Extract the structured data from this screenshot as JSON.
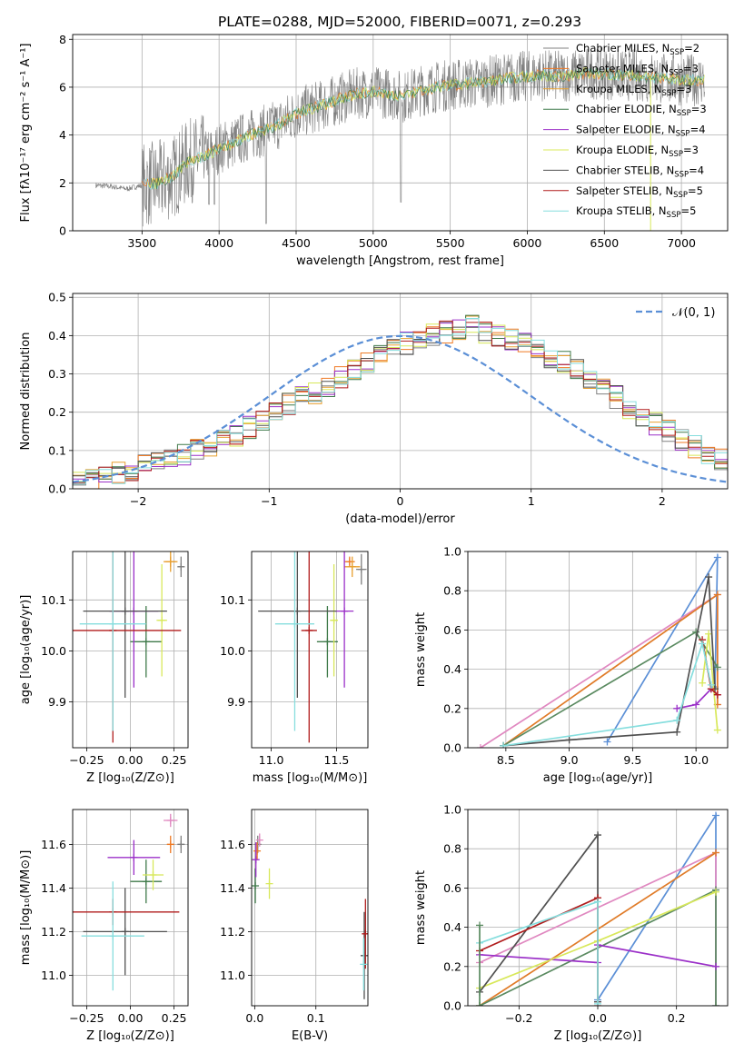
{
  "figure": {
    "title": "PLATE=0288, MJD=52000, FIBERID=0071, z=0.293"
  },
  "colors": {
    "chabrier_miles": "#808080",
    "salpeter_miles": "#ef7a24",
    "kroupa_miles": "#e8a030",
    "chabrier_elodie": "#3f7a4a",
    "salpeter_elodie": "#9b30c8",
    "kroupa_elodie": "#d8e85a",
    "chabrier_stelib": "#505050",
    "salpeter_stelib": "#b01c1c",
    "kroupa_stelib": "#86dede",
    "data_grey": "#7f7f7f",
    "gauss": "#5b8fd6",
    "pink": "#e088c0",
    "blue": "#5b8fd6",
    "orange": "#e07b28",
    "green": "#5a8a60"
  },
  "chart_data": [
    {
      "id": "spectrum",
      "type": "line",
      "title": "PLATE=0288, MJD=52000, FIBERID=0071, z=0.293",
      "xlabel": "wavelength [Angstrom, rest frame]",
      "ylabel": "Flux [fλ10⁻¹⁷ erg cm⁻² s⁻¹ A⁻¹]",
      "xlim": [
        3050,
        7300
      ],
      "ylim": [
        0,
        8.2
      ],
      "xticks": [
        "3500",
        "4000",
        "4500",
        "5000",
        "5500",
        "6000",
        "6500",
        "7000"
      ],
      "yticks": [
        "0",
        "2",
        "4",
        "6",
        "8"
      ],
      "legend_position": "top-right",
      "legend": [
        {
          "name": "Chabrier MILES, N",
          "sub": "SSP",
          "suffix": "=2",
          "color_key": "chabrier_miles"
        },
        {
          "name": "Salpeter MILES, N",
          "sub": "SSP",
          "suffix": "=3",
          "color_key": "salpeter_miles"
        },
        {
          "name": "Kroupa MILES, N",
          "sub": "SSP",
          "suffix": "=3",
          "color_key": "kroupa_miles"
        },
        {
          "name": "Chabrier ELODIE, N",
          "sub": "SSP",
          "suffix": "=3",
          "color_key": "chabrier_elodie"
        },
        {
          "name": "Salpeter ELODIE, N",
          "sub": "SSP",
          "suffix": "=4",
          "color_key": "salpeter_elodie"
        },
        {
          "name": "Kroupa ELODIE, N",
          "sub": "SSP",
          "suffix": "=3",
          "color_key": "kroupa_elodie"
        },
        {
          "name": "Chabrier STELIB, N",
          "sub": "SSP",
          "suffix": "=4",
          "color_key": "chabrier_stelib"
        },
        {
          "name": "Salpeter STELIB, N",
          "sub": "SSP",
          "suffix": "=5",
          "color_key": "salpeter_stelib"
        },
        {
          "name": "Kroupa STELIB, N",
          "sub": "SSP",
          "suffix": "=5",
          "color_key": "kroupa_stelib"
        }
      ],
      "continuum": [
        [
          3200,
          1.9
        ],
        [
          3300,
          1.85
        ],
        [
          3400,
          1.75
        ],
        [
          3500,
          1.9
        ],
        [
          3600,
          2.0
        ],
        [
          3700,
          2.25
        ],
        [
          3800,
          2.9
        ],
        [
          3900,
          3.1
        ],
        [
          4000,
          3.45
        ],
        [
          4100,
          3.7
        ],
        [
          4200,
          4.0
        ],
        [
          4300,
          4.2
        ],
        [
          4400,
          4.5
        ],
        [
          4500,
          4.9
        ],
        [
          4600,
          5.1
        ],
        [
          4700,
          5.3
        ],
        [
          4800,
          5.55
        ],
        [
          4900,
          5.75
        ],
        [
          5000,
          5.8
        ],
        [
          5100,
          5.75
        ],
        [
          5200,
          5.6
        ],
        [
          5300,
          5.85
        ],
        [
          5400,
          6.0
        ],
        [
          5500,
          6.1
        ],
        [
          5600,
          6.15
        ],
        [
          5700,
          6.2
        ],
        [
          5800,
          6.3
        ],
        [
          5900,
          6.4
        ],
        [
          6000,
          6.45
        ],
        [
          6100,
          6.5
        ],
        [
          6200,
          6.45
        ],
        [
          6300,
          6.5
        ],
        [
          6400,
          6.6
        ],
        [
          6500,
          6.55
        ],
        [
          6600,
          6.5
        ],
        [
          6700,
          6.5
        ],
        [
          6800,
          6.4
        ],
        [
          6900,
          6.35
        ],
        [
          7000,
          6.3
        ],
        [
          7100,
          6.3
        ],
        [
          7150,
          6.3
        ]
      ]
    },
    {
      "id": "residuals",
      "type": "histogram",
      "xlabel": "(data-model)/error",
      "ylabel": "Normed distribution",
      "xlim": [
        -2.5,
        2.5
      ],
      "ylim": [
        0,
        0.51
      ],
      "xticks": [
        "−2",
        "−1",
        "0",
        "1",
        "2"
      ],
      "yticks": [
        "0.0",
        "0.1",
        "0.2",
        "0.3",
        "0.4",
        "0.5"
      ],
      "legend_position": "top-right",
      "legend": [
        {
          "name": "𝒩(0, 1)",
          "color_key": "gauss",
          "style": "dashed"
        }
      ],
      "bin_width": 0.1,
      "bin_start": -2.5,
      "series_envelope": [
        0.02,
        0.02,
        0.03,
        0.04,
        0.05,
        0.06,
        0.07,
        0.08,
        0.09,
        0.1,
        0.11,
        0.13,
        0.14,
        0.16,
        0.18,
        0.2,
        0.22,
        0.24,
        0.25,
        0.27,
        0.29,
        0.31,
        0.33,
        0.35,
        0.37,
        0.38,
        0.39,
        0.4,
        0.41,
        0.42,
        0.43,
        0.41,
        0.4,
        0.39,
        0.38,
        0.36,
        0.34,
        0.33,
        0.31,
        0.28,
        0.26,
        0.24,
        0.21,
        0.19,
        0.17,
        0.15,
        0.13,
        0.11,
        0.09,
        0.08,
        0.07
      ]
    },
    {
      "id": "age_vs_Z",
      "type": "scatter",
      "xlabel": "Z [log₁₀(Z/Z⊙)]",
      "ylabel": "age  [log₁₀(age/yr)]",
      "xlim": [
        -0.33,
        0.33
      ],
      "ylim": [
        9.81,
        10.195
      ],
      "xticks": [
        "−0.25",
        "0.00",
        "0.25"
      ],
      "yticks": [
        "9.9",
        "10.0",
        "10.1"
      ],
      "points": [
        {
          "color_key": "chabrier_miles",
          "x": 0.29,
          "y": 10.165,
          "xerr": 0.02,
          "yerr": 0.02
        },
        {
          "color_key": "salpeter_miles",
          "x": 0.23,
          "y": 10.175,
          "xerr": 0.03,
          "yerr": 0.01
        },
        {
          "color_key": "kroupa_miles",
          "x": 0.23,
          "y": 10.175,
          "xerr": 0.04,
          "yerr": 0.02
        },
        {
          "color_key": "chabrier_elodie",
          "x": 0.09,
          "y": 10.018,
          "xerr": 0.09,
          "yerr": 0.07
        },
        {
          "color_key": "salpeter_elodie",
          "x": 0.02,
          "y": 10.078,
          "xerr": 0.14,
          "yerr": 0.15
        },
        {
          "color_key": "kroupa_elodie",
          "x": 0.18,
          "y": 10.06,
          "xerr": 0.03,
          "yerr": 0.11
        },
        {
          "color_key": "chabrier_stelib",
          "x": -0.03,
          "y": 10.078,
          "xerr": 0.24,
          "yerr": 0.17
        },
        {
          "color_key": "salpeter_stelib",
          "x": -0.1,
          "y": 10.04,
          "xerr": 0.39,
          "yerr": 0.22
        },
        {
          "color_key": "kroupa_stelib",
          "x": -0.1,
          "y": 10.053,
          "xerr": 0.19,
          "yerr": 0.21
        }
      ]
    },
    {
      "id": "age_vs_mass",
      "type": "scatter",
      "xlabel": "mass [log₁₀(M/M⊙)]",
      "xlim": [
        10.85,
        11.74
      ],
      "ylim": [
        9.81,
        10.195
      ],
      "xticks": [
        "11.0",
        "11.5"
      ],
      "yticks": [
        "9.9",
        "10.0",
        "10.1"
      ],
      "points": [
        {
          "color_key": "chabrier_miles",
          "x": 11.69,
          "y": 10.16,
          "xerr": 0.04,
          "yerr": 0.03
        },
        {
          "color_key": "salpeter_miles",
          "x": 11.6,
          "y": 10.175,
          "xerr": 0.04,
          "yerr": 0.01
        },
        {
          "color_key": "kroupa_miles",
          "x": 11.62,
          "y": 10.165,
          "xerr": 0.06,
          "yerr": 0.02
        },
        {
          "color_key": "chabrier_elodie",
          "x": 11.43,
          "y": 10.018,
          "xerr": 0.08,
          "yerr": 0.07
        },
        {
          "color_key": "salpeter_elodie",
          "x": 11.56,
          "y": 10.078,
          "xerr": 0.07,
          "yerr": 0.15
        },
        {
          "color_key": "kroupa_elodie",
          "x": 11.48,
          "y": 10.06,
          "xerr": 0.03,
          "yerr": 0.11
        },
        {
          "color_key": "chabrier_stelib",
          "x": 11.2,
          "y": 10.078,
          "xerr": 0.3,
          "yerr": 0.17
        },
        {
          "color_key": "salpeter_stelib",
          "x": 11.29,
          "y": 10.04,
          "xerr": 0.06,
          "yerr": 0.22
        },
        {
          "color_key": "kroupa_stelib",
          "x": 11.18,
          "y": 10.053,
          "xerr": 0.15,
          "yerr": 0.21
        }
      ]
    },
    {
      "id": "mass_weight_vs_age",
      "type": "line",
      "ylabel": "mass weight",
      "xlabel": "age  [log₁₀(age/yr)]",
      "xlim": [
        8.2,
        10.25
      ],
      "ylim": [
        0,
        1.0
      ],
      "xticks": [
        "8.5",
        "9.0",
        "9.5",
        "10.0"
      ],
      "yticks": [
        "0.0",
        "0.2",
        "0.4",
        "0.6",
        "0.8",
        "1.0"
      ],
      "series": [
        {
          "color_key": "blue",
          "points": [
            [
              9.3,
              0.03
            ],
            [
              10.17,
              0.97
            ],
            [
              10.15,
              0.31
            ]
          ]
        },
        {
          "color_key": "pink",
          "points": [
            [
              8.3,
              0.0
            ],
            [
              10.17,
              0.78
            ],
            [
              10.17,
              0.22
            ]
          ]
        },
        {
          "color_key": "orange",
          "points": [
            [
              8.48,
              0.01
            ],
            [
              10.17,
              0.78
            ],
            [
              10.17,
              0.22
            ]
          ]
        },
        {
          "color_key": "green",
          "points": [
            [
              8.48,
              0.01
            ],
            [
              10.0,
              0.59
            ],
            [
              10.17,
              0.41
            ]
          ]
        },
        {
          "color_key": "salpeter_elodie",
          "points": [
            [
              9.85,
              0.2
            ],
            [
              10.0,
              0.22
            ],
            [
              10.12,
              0.3
            ],
            [
              10.17,
              0.27
            ]
          ]
        },
        {
          "color_key": "kroupa_elodie",
          "points": [
            [
              10.05,
              0.33
            ],
            [
              10.1,
              0.58
            ],
            [
              10.17,
              0.09
            ]
          ]
        },
        {
          "color_key": "chabrier_stelib",
          "points": [
            [
              8.48,
              0.01
            ],
            [
              9.0,
              0.04
            ],
            [
              9.85,
              0.08
            ],
            [
              10.1,
              0.87
            ],
            [
              10.15,
              0.3
            ]
          ]
        },
        {
          "color_key": "salpeter_stelib",
          "points": [
            [
              10.05,
              0.55
            ],
            [
              10.12,
              0.3
            ],
            [
              10.17,
              0.27
            ]
          ]
        },
        {
          "color_key": "kroupa_stelib",
          "points": [
            [
              8.48,
              0.01
            ],
            [
              9.85,
              0.14
            ],
            [
              10.05,
              0.53
            ],
            [
              10.12,
              0.32
            ]
          ]
        }
      ]
    },
    {
      "id": "mass_vs_Z",
      "type": "scatter",
      "xlabel": "Z [log₁₀(Z/Z⊙)]",
      "ylabel": "mass [log₁₀(M/M⊙)]",
      "xlim": [
        -0.33,
        0.33
      ],
      "ylim": [
        10.86,
        11.76
      ],
      "xticks": [
        "−0.25",
        "0.00",
        "0.25"
      ],
      "yticks": [
        "11.0",
        "11.2",
        "11.4",
        "11.6"
      ],
      "points": [
        {
          "color_key": "chabrier_miles",
          "x": 0.29,
          "y": 11.6,
          "xerr": 0.02,
          "yerr": 0.04
        },
        {
          "color_key": "salpeter_miles",
          "x": 0.23,
          "y": 11.6,
          "xerr": 0.02,
          "yerr": 0.04
        },
        {
          "color_key": "pink",
          "x": 0.23,
          "y": 11.71,
          "xerr": 0.04,
          "yerr": 0.03
        },
        {
          "color_key": "chabrier_elodie",
          "x": 0.09,
          "y": 11.43,
          "xerr": 0.09,
          "yerr": 0.1
        },
        {
          "color_key": "salpeter_elodie",
          "x": 0.02,
          "y": 11.54,
          "xerr": 0.15,
          "yerr": 0.08
        },
        {
          "color_key": "kroupa_elodie",
          "x": 0.13,
          "y": 11.46,
          "xerr": 0.06,
          "yerr": 0.07
        },
        {
          "color_key": "chabrier_stelib",
          "x": -0.03,
          "y": 11.2,
          "xerr": 0.24,
          "yerr": 0.2
        },
        {
          "color_key": "salpeter_stelib",
          "x": -0.1,
          "y": 11.29,
          "xerr": 0.38,
          "yerr": 0.06
        },
        {
          "color_key": "kroupa_stelib",
          "x": -0.1,
          "y": 11.18,
          "xerr": 0.18,
          "yerr": 0.25
        }
      ]
    },
    {
      "id": "mass_vs_ebv",
      "type": "scatter",
      "xlabel": "E(B-V)",
      "xlim": [
        -0.005,
        0.185
      ],
      "ylim": [
        10.86,
        11.76
      ],
      "xticks": [
        "0.0",
        "0.1"
      ],
      "yticks": [
        "11.0",
        "11.2",
        "11.4",
        "11.6"
      ],
      "points": [
        {
          "color_key": "chabrier_miles",
          "x": 0.005,
          "y": 11.6,
          "yerr": 0.04
        },
        {
          "color_key": "salpeter_miles",
          "x": 0.004,
          "y": 11.57,
          "yerr": 0.04
        },
        {
          "color_key": "pink",
          "x": 0.008,
          "y": 11.62,
          "yerr": 0.03
        },
        {
          "color_key": "chabrier_elodie",
          "x": 0.001,
          "y": 11.41,
          "yerr": 0.08
        },
        {
          "color_key": "salpeter_elodie",
          "x": 0.002,
          "y": 11.53,
          "yerr": 0.08
        },
        {
          "color_key": "kroupa_elodie",
          "x": 0.024,
          "y": 11.42,
          "yerr": 0.07
        },
        {
          "color_key": "chabrier_stelib",
          "x": 0.179,
          "y": 11.09,
          "yerr": 0.2
        },
        {
          "color_key": "salpeter_stelib",
          "x": 0.181,
          "y": 11.19,
          "yerr": 0.16
        },
        {
          "color_key": "kroupa_stelib",
          "x": 0.178,
          "y": 11.05,
          "yerr": 0.12
        }
      ]
    },
    {
      "id": "mass_weight_vs_Z",
      "type": "line",
      "ylabel": "mass weight",
      "xlabel": "Z [log₁₀(Z/Z⊙)]",
      "xlim": [
        -0.33,
        0.33
      ],
      "ylim": [
        0,
        1.0
      ],
      "xticks": [
        "−0.2",
        "0.0",
        "0.2"
      ],
      "yticks": [
        "0.0",
        "0.2",
        "0.4",
        "0.6",
        "0.8",
        "1.0"
      ],
      "series": [
        {
          "color_key": "blue",
          "points": [
            [
              0.0,
              0.03
            ],
            [
              0.3,
              0.97
            ],
            [
              0.3,
              0.0
            ]
          ]
        },
        {
          "color_key": "pink",
          "points": [
            [
              -0.3,
              0.22
            ],
            [
              0.3,
              0.78
            ],
            [
              0.3,
              0.0
            ]
          ]
        },
        {
          "color_key": "orange",
          "points": [
            [
              -0.3,
              0.0
            ],
            [
              0.3,
              0.78
            ]
          ]
        },
        {
          "color_key": "green",
          "points": [
            [
              -0.3,
              0.0
            ],
            [
              0.3,
              0.59
            ],
            [
              0.3,
              0.0
            ]
          ]
        },
        {
          "color_key": "salpeter_elodie",
          "points": [
            [
              -0.3,
              0.26
            ],
            [
              0.0,
              0.22
            ],
            [
              0.0,
              0.31
            ],
            [
              0.3,
              0.2
            ]
          ]
        },
        {
          "color_key": "kroupa_elodie",
          "points": [
            [
              -0.3,
              0.09
            ],
            [
              0.0,
              0.33
            ],
            [
              0.3,
              0.58
            ]
          ]
        },
        {
          "color_key": "chabrier_stelib",
          "points": [
            [
              -0.3,
              0.07
            ],
            [
              0.0,
              0.87
            ],
            [
              0.0,
              0.02
            ]
          ]
        },
        {
          "color_key": "salpeter_stelib",
          "points": [
            [
              -0.3,
              0.28
            ],
            [
              0.0,
              0.55
            ],
            [
              0.0,
              0.0
            ]
          ]
        },
        {
          "color_key": "kroupa_stelib",
          "points": [
            [
              -0.3,
              0.32
            ],
            [
              0.0,
              0.53
            ],
            [
              0.0,
              0.01
            ]
          ]
        },
        {
          "color_key": "green",
          "points": [
            [
              -0.3,
              0.41
            ],
            [
              -0.3,
              0.0
            ]
          ]
        }
      ]
    }
  ]
}
